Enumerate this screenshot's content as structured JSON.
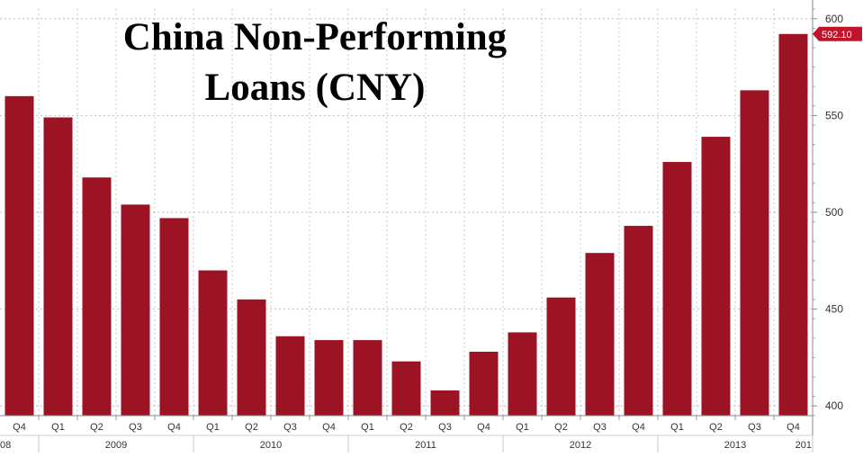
{
  "chart_data": {
    "type": "bar",
    "title_lines": [
      "China Non-Performing",
      "Loans (CNY)"
    ],
    "categories": [
      "Q4",
      "Q1",
      "Q2",
      "Q3",
      "Q4",
      "Q1",
      "Q2",
      "Q3",
      "Q4",
      "Q1",
      "Q2",
      "Q3",
      "Q4",
      "Q1",
      "Q2",
      "Q3",
      "Q4",
      "Q1",
      "Q2",
      "Q3",
      "Q4"
    ],
    "year_labels": [
      "08",
      "2009",
      "2010",
      "2011",
      "2012",
      "2013",
      "201"
    ],
    "series": [
      {
        "values": [
          560,
          549,
          518,
          504,
          497,
          470,
          455,
          436,
          434,
          434,
          423,
          408,
          428,
          438,
          456,
          479,
          493,
          526,
          539,
          563,
          592.1
        ]
      }
    ],
    "ylim": [
      395,
      605
    ],
    "yticks": [
      400,
      450,
      500,
      550,
      600
    ],
    "last_value_label": "592.10",
    "grid": true,
    "bar_color": "#9c1324",
    "label_color": "#c0142a"
  }
}
